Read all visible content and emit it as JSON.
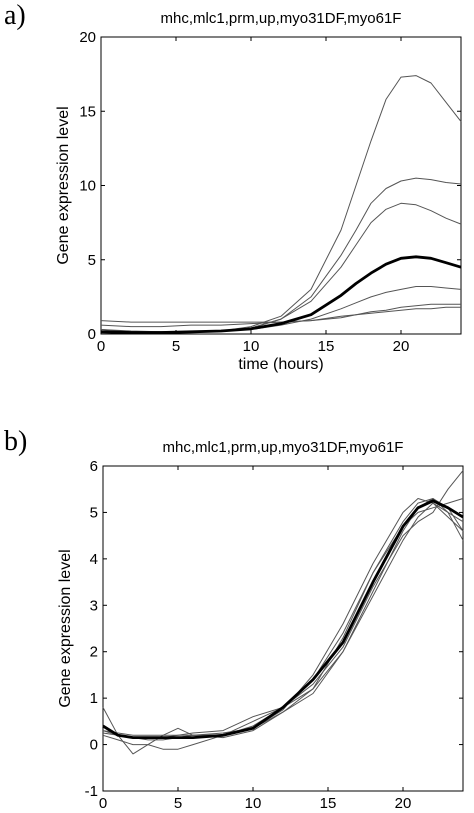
{
  "chart_data": [
    {
      "panel": "a)",
      "type": "line",
      "title": "mhc,mlc1,prm,up,myo31DF,myo61F",
      "xlabel": "time (hours)",
      "ylabel": "Gene expression level",
      "xlim": [
        0,
        24
      ],
      "ylim": [
        0,
        20
      ],
      "xticks": [
        0,
        5,
        10,
        15,
        20
      ],
      "yticks": [
        0,
        5,
        10,
        15,
        20
      ],
      "grid": false,
      "series": [
        {
          "role": "gene",
          "x": [
            0,
            2,
            4,
            6,
            8,
            10,
            12,
            14,
            16,
            17,
            18,
            19,
            20,
            21,
            22,
            23,
            24
          ],
          "y": [
            0.3,
            0.15,
            0.15,
            0.15,
            0.2,
            0.5,
            1.2,
            3.0,
            7.0,
            10.0,
            13.0,
            15.8,
            17.3,
            17.4,
            16.9,
            15.6,
            14.3
          ]
        },
        {
          "role": "gene",
          "x": [
            0,
            2,
            4,
            6,
            8,
            10,
            12,
            14,
            16,
            17,
            18,
            19,
            20,
            21,
            22,
            23,
            24
          ],
          "y": [
            0.2,
            0.1,
            0.1,
            0.15,
            0.2,
            0.4,
            1.0,
            2.5,
            5.3,
            7.0,
            8.8,
            9.8,
            10.3,
            10.5,
            10.4,
            10.2,
            10.1
          ]
        },
        {
          "role": "gene",
          "x": [
            0,
            2,
            4,
            6,
            8,
            10,
            12,
            14,
            16,
            17,
            18,
            19,
            20,
            21,
            22,
            23,
            24
          ],
          "y": [
            0.3,
            0.2,
            0.15,
            0.15,
            0.2,
            0.4,
            1.0,
            2.2,
            4.5,
            6.0,
            7.5,
            8.4,
            8.8,
            8.7,
            8.3,
            7.8,
            7.4
          ]
        },
        {
          "role": "mean",
          "x": [
            0,
            2,
            4,
            6,
            8,
            10,
            12,
            14,
            16,
            17,
            18,
            19,
            20,
            21,
            22,
            23,
            24
          ],
          "y": [
            0.15,
            0.1,
            0.1,
            0.15,
            0.2,
            0.35,
            0.7,
            1.3,
            2.6,
            3.4,
            4.1,
            4.7,
            5.1,
            5.2,
            5.1,
            4.8,
            4.5
          ]
        },
        {
          "role": "gene",
          "x": [
            0,
            2,
            4,
            6,
            8,
            10,
            12,
            14,
            16,
            17,
            18,
            19,
            20,
            21,
            22,
            23,
            24
          ],
          "y": [
            0.1,
            0.1,
            0.1,
            0.15,
            0.2,
            0.3,
            0.6,
            1.0,
            1.7,
            2.1,
            2.5,
            2.8,
            3.0,
            3.2,
            3.2,
            3.1,
            3.0
          ]
        },
        {
          "role": "gene",
          "x": [
            0,
            2,
            4,
            6,
            8,
            10,
            12,
            14,
            16,
            17,
            18,
            19,
            20,
            21,
            22,
            23,
            24
          ],
          "y": [
            0.9,
            0.8,
            0.8,
            0.8,
            0.8,
            0.8,
            0.8,
            0.9,
            1.2,
            1.3,
            1.4,
            1.5,
            1.6,
            1.7,
            1.7,
            1.8,
            1.8
          ]
        },
        {
          "role": "gene",
          "x": [
            0,
            2,
            4,
            6,
            8,
            10,
            12,
            14,
            16,
            17,
            18,
            19,
            20,
            21,
            22,
            23,
            24
          ],
          "y": [
            0.6,
            0.5,
            0.5,
            0.6,
            0.6,
            0.7,
            0.8,
            0.9,
            1.1,
            1.3,
            1.5,
            1.6,
            1.8,
            1.9,
            2.0,
            2.0,
            2.0
          ]
        }
      ]
    },
    {
      "panel": "b)",
      "type": "line",
      "title": "mhc,mlc1,prm,up,myo31DF,myo61F",
      "xlabel": "time (hours)",
      "ylabel": "Gene expression level",
      "xlim": [
        0,
        24
      ],
      "ylim": [
        -1,
        6
      ],
      "xticks": [
        0,
        5,
        10,
        15,
        20
      ],
      "yticks": [
        -1,
        0,
        1,
        2,
        3,
        4,
        5,
        6
      ],
      "grid": false,
      "series": [
        {
          "role": "gene",
          "x": [
            0,
            1,
            2,
            3,
            4,
            5,
            6,
            8,
            10,
            12,
            14,
            16,
            18,
            20,
            21,
            22,
            23,
            24
          ],
          "y": [
            0.8,
            0.2,
            -0.2,
            0.0,
            0.2,
            0.35,
            0.2,
            0.15,
            0.3,
            0.7,
            1.2,
            2.0,
            3.3,
            4.6,
            5.1,
            5.3,
            5.0,
            4.4
          ]
        },
        {
          "role": "gene",
          "x": [
            0,
            1,
            2,
            3,
            4,
            5,
            6,
            8,
            10,
            12,
            14,
            16,
            18,
            20,
            21,
            22,
            23,
            24
          ],
          "y": [
            0.2,
            0.1,
            0.0,
            0.0,
            -0.1,
            -0.1,
            0.0,
            0.2,
            0.5,
            0.8,
            1.2,
            2.3,
            3.7,
            4.8,
            5.2,
            5.3,
            5.1,
            4.6
          ]
        },
        {
          "role": "gene",
          "x": [
            0,
            1,
            2,
            3,
            4,
            5,
            6,
            8,
            10,
            12,
            14,
            16,
            18,
            20,
            21,
            22,
            23,
            24
          ],
          "y": [
            0.3,
            0.25,
            0.2,
            0.2,
            0.2,
            0.2,
            0.25,
            0.3,
            0.6,
            0.8,
            1.3,
            2.1,
            3.4,
            4.5,
            4.8,
            5.0,
            5.5,
            5.9
          ]
        },
        {
          "role": "gene",
          "x": [
            0,
            1,
            2,
            3,
            4,
            5,
            6,
            8,
            10,
            12,
            14,
            16,
            18,
            20,
            21,
            22,
            23,
            24
          ],
          "y": [
            0.4,
            0.2,
            0.15,
            0.15,
            0.15,
            0.15,
            0.2,
            0.25,
            0.35,
            0.7,
            1.1,
            2.0,
            3.2,
            4.4,
            4.9,
            5.2,
            5.0,
            4.8
          ]
        },
        {
          "role": "gene",
          "x": [
            0,
            1,
            2,
            3,
            4,
            5,
            6,
            8,
            10,
            12,
            14,
            16,
            18,
            20,
            21,
            22,
            23,
            24
          ],
          "y": [
            0.3,
            0.2,
            0.15,
            0.1,
            0.1,
            0.15,
            0.2,
            0.2,
            0.35,
            0.75,
            1.5,
            2.6,
            3.9,
            5.0,
            5.3,
            5.2,
            4.9,
            4.6
          ]
        },
        {
          "role": "gene",
          "x": [
            0,
            1,
            2,
            3,
            4,
            5,
            6,
            8,
            10,
            12,
            14,
            16,
            18,
            20,
            21,
            22,
            23,
            24
          ],
          "y": [
            0.25,
            0.2,
            0.15,
            0.15,
            0.15,
            0.2,
            0.2,
            0.2,
            0.4,
            0.8,
            1.4,
            2.4,
            3.7,
            4.7,
            5.0,
            5.1,
            5.2,
            5.3
          ]
        },
        {
          "role": "mean",
          "x": [
            0,
            1,
            2,
            3,
            4,
            5,
            6,
            8,
            10,
            12,
            14,
            16,
            18,
            20,
            21,
            22,
            23,
            24
          ],
          "y": [
            0.4,
            0.2,
            0.15,
            0.15,
            0.15,
            0.15,
            0.15,
            0.2,
            0.35,
            0.8,
            1.4,
            2.2,
            3.5,
            4.7,
            5.1,
            5.25,
            5.1,
            4.9
          ]
        }
      ]
    }
  ]
}
